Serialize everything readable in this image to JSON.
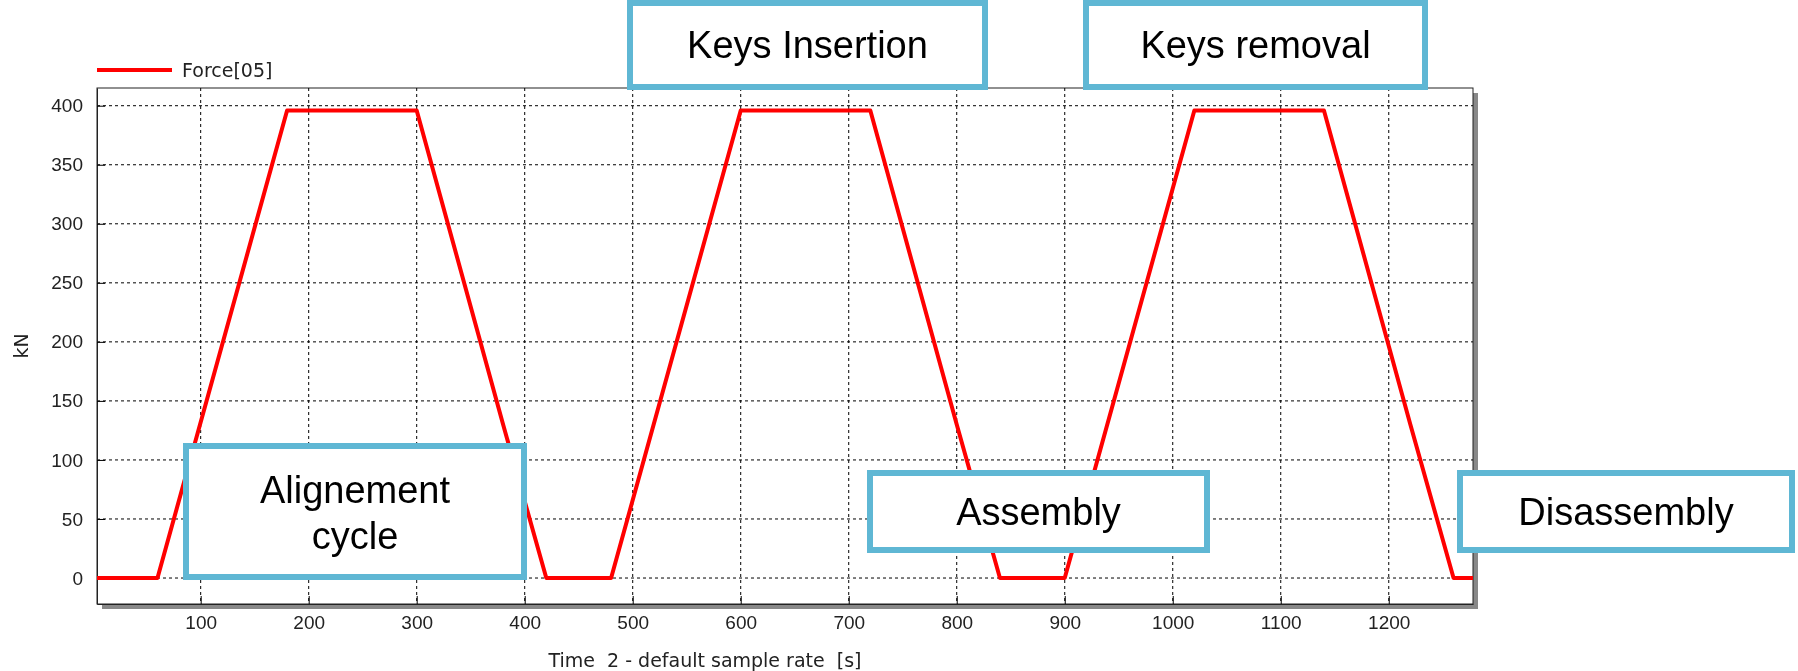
{
  "chart_data": {
    "type": "line",
    "xlabel": "Time  2 - default sample rate  [s]",
    "ylabel": "kN",
    "xlim": [
      4,
      1278
    ],
    "xticks": [
      100,
      200,
      300,
      400,
      500,
      600,
      700,
      800,
      900,
      1000,
      1100,
      1200
    ],
    "ylim": [
      -22,
      415
    ],
    "yticks": [
      0,
      50,
      100,
      150,
      200,
      250,
      300,
      350,
      400
    ],
    "grid": true,
    "legend": "top left",
    "line_style": "solid",
    "series": [
      {
        "name": "Force[05]",
        "color": "#ff0000",
        "x": [
          4,
          60,
          180,
          300,
          380,
          420,
          480,
          600,
          720,
          800,
          840,
          900,
          1020,
          1140,
          1220,
          1260,
          1278
        ],
        "values": [
          0,
          0,
          396,
          396,
          130,
          0,
          0,
          396,
          396,
          130,
          0,
          0,
          396,
          396,
          130,
          0,
          0
        ]
      }
    ],
    "annotations": [
      "Keys Insertion",
      "Keys removal",
      "Alignement cycle",
      "Assembly",
      "Disassembly"
    ]
  }
}
